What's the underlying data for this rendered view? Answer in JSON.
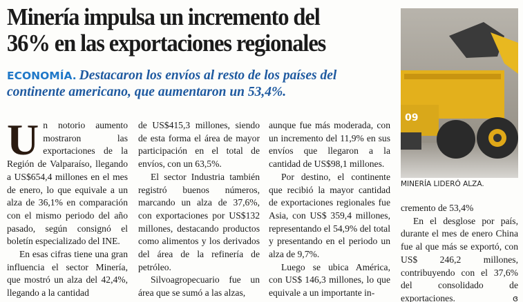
{
  "headline": {
    "line1": "Minería impulsa un incremento del",
    "line2": "36% en las exportaciones regionales"
  },
  "deck": {
    "section": "ECONOMÍA.",
    "text": "Destacaron los envíos al resto de los países del continente americano, que aumentaron un 53,4%."
  },
  "photo": {
    "caption": "MINERÍA LIDERÓ ALZA.",
    "truck_number": "09"
  },
  "body": {
    "drop_cap": "U",
    "col1": [
      "n notorio aumento mostraron las exportaciones de la Región de Valparaíso, llegando a US$654,4 millones en el mes de enero, lo que equivale a un alza de 36,1% en comparación con el mismo periodo del año pasado, según consignó el boletín especializado del INE.",
      "En esas cifras tiene una gran influencia el sector Minería, que mostró un alza del 42,4%, llegando a la cantidad"
    ],
    "col2": [
      "de US$415,3 millones, siendo de esta forma el área de mayor participación en el total de envíos, con un 63,5%.",
      "El sector Industria también registró buenos números, marcando un alza de 37,6%, con exportaciones por US$132 millones, destacando productos como alimentos y los derivados del área de la refinería de petróleo.",
      "Silvoagropecuario fue un área que se sumó a las alzas,"
    ],
    "col3": [
      "aunque fue más moderada, con un incremento del 11,9% en sus envíos que llegaron a la cantidad de US$98,1 millones.",
      "Por destino, el continente que recibió la mayor cantidad de exportaciones regionales fue Asia, con US$ 359,4 millones, representando el 54,9% del total y presentando en el periodo un alza de 9,7%.",
      "Luego se ubica América, con US$ 146,3 millones, lo que equivale a un importante in-"
    ],
    "col4": [
      "cremento de 53,4%",
      "En el desglose por país, durante el mes de enero China fue al que más se exportó, con US$ 246,2 millones, contribuyendo con el 37,6% del consolidado de exportaciones."
    ],
    "end_mark": "ɞ"
  },
  "colors": {
    "headline": "#1b1b1b",
    "section": "#1f78c8",
    "deck": "#1f5aa0",
    "truck": "#e8b820"
  }
}
